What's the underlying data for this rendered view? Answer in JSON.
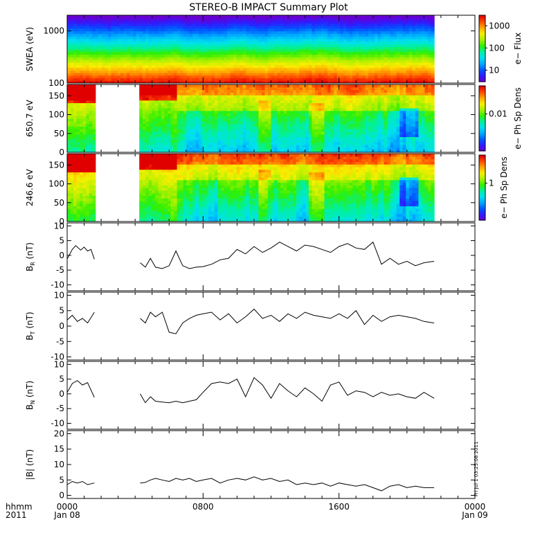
{
  "title": "STEREO-B IMPACT Summary Plot",
  "time_axis": {
    "corner_label_1": "hhmm",
    "corner_label_2": "2011",
    "ticks": [
      {
        "hours": 0,
        "label": "0000",
        "date": "Jan 08"
      },
      {
        "hours": 8,
        "label": "0800",
        "date": ""
      },
      {
        "hours": 16,
        "label": "1600",
        "date": ""
      },
      {
        "hours": 24,
        "label": "0000",
        "date": "Jan 09"
      }
    ]
  },
  "stamp": "Fri Jul 1 03:25:08 2011",
  "colors": {
    "colormap": [
      "#6a00d0",
      "#2f1cff",
      "#0058ff",
      "#00a8ff",
      "#00e0f0",
      "#00f0a0",
      "#30f000",
      "#a8f000",
      "#f8f000",
      "#ffa800",
      "#ff4800",
      "#e00000"
    ]
  },
  "chart_data": [
    {
      "type": "heatmap",
      "id": "swea",
      "ylabel": "SWEA (eV)",
      "y_scale": "log",
      "ylim": [
        100,
        2000
      ],
      "y_ticks": [
        {
          "v": 100,
          "label": "100"
        },
        {
          "v": 1000,
          "label": "1000"
        }
      ],
      "x_coverage_hours": [
        [
          0,
          21.6
        ]
      ],
      "colorbar": {
        "label": "e− Flux",
        "scale": "log",
        "range": [
          3,
          3000
        ],
        "ticks": [
          {
            "v": 10,
            "label": "10"
          },
          {
            "v": 100,
            "label": "100"
          },
          {
            "v": 1000,
            "label": "1000"
          }
        ]
      },
      "energy_profile": [
        {
          "energy": 100,
          "flux": 1800
        },
        {
          "energy": 200,
          "flux": 1000
        },
        {
          "energy": 300,
          "flux": 500
        },
        {
          "energy": 500,
          "flux": 150
        },
        {
          "energy": 800,
          "flux": 50
        },
        {
          "energy": 1200,
          "flux": 14
        },
        {
          "energy": 2000,
          "flux": 3
        }
      ]
    },
    {
      "type": "heatmap",
      "id": "pad650",
      "ylabel": "650.7 eV",
      "ylim": [
        0,
        180
      ],
      "y_ticks": [
        {
          "v": 0,
          "label": "0"
        },
        {
          "v": 50,
          "label": "50"
        },
        {
          "v": 100,
          "label": "100"
        },
        {
          "v": 150,
          "label": "150"
        }
      ],
      "x_coverage_hours": [
        [
          0,
          1.6
        ],
        [
          4.3,
          21.6
        ]
      ],
      "colorbar": {
        "label": "e− Ph Sp Dens",
        "scale": "log",
        "range": [
          0.0012,
          0.05
        ],
        "ticks": [
          {
            "v": 0.01,
            "label": "0.01"
          }
        ]
      }
    },
    {
      "type": "heatmap",
      "id": "pad246",
      "ylabel": "246.6 eV",
      "ylim": [
        0,
        180
      ],
      "y_ticks": [
        {
          "v": 0,
          "label": "0"
        },
        {
          "v": 50,
          "label": "50"
        },
        {
          "v": 100,
          "label": "100"
        },
        {
          "v": 150,
          "label": "150"
        }
      ],
      "x_coverage_hours": [
        [
          0,
          1.6
        ],
        [
          4.3,
          21.6
        ]
      ],
      "colorbar": {
        "label": "e− Ph Sp Dens",
        "scale": "log",
        "range": [
          0.12,
          5
        ],
        "ticks": [
          {
            "v": 1,
            "label": "1"
          }
        ]
      }
    },
    {
      "type": "line",
      "id": "br",
      "ylabel": "B",
      "ylabel_sub": "R",
      "ylabel_unit": "(nT)",
      "ylim": [
        -12,
        11
      ],
      "y_ticks": [
        -10,
        -5,
        0,
        5,
        10
      ],
      "segments": [
        {
          "x": [
            0.0,
            0.3,
            0.5,
            0.8,
            1.0,
            1.2,
            1.4,
            1.6
          ],
          "y": [
            -1.2,
            2.0,
            3.3,
            1.8,
            2.8,
            1.5,
            2.0,
            -1.3
          ]
        },
        {
          "x": [
            4.3,
            4.6,
            4.9,
            5.2,
            5.6,
            6.0,
            6.4,
            6.8,
            7.2,
            7.6,
            8.0,
            8.5,
            9.0,
            9.5,
            10.0,
            10.5,
            11.0,
            11.5,
            12.0,
            12.5,
            13.0,
            13.5,
            14.0,
            14.5,
            15.0,
            15.5,
            16.0,
            16.5,
            17.0,
            17.5,
            18.0,
            18.5,
            19.0,
            19.5,
            20.0,
            20.5,
            21.0,
            21.6
          ],
          "y": [
            -2.5,
            -4.0,
            -1.0,
            -4.0,
            -4.5,
            -3.5,
            1.5,
            -3.5,
            -4.5,
            -4.0,
            -3.8,
            -3.0,
            -1.5,
            -1.0,
            2.0,
            0.5,
            3.0,
            1.0,
            2.5,
            4.5,
            3.0,
            1.5,
            3.5,
            3.0,
            2.0,
            1.0,
            3.0,
            4.0,
            2.5,
            2.0,
            4.5,
            -3.0,
            -1.0,
            -3.0,
            -2.0,
            -3.5,
            -2.5,
            -2.0
          ]
        }
      ]
    },
    {
      "type": "line",
      "id": "bt",
      "ylabel": "B",
      "ylabel_sub": "T",
      "ylabel_unit": "(nT)",
      "ylim": [
        -11,
        11
      ],
      "y_ticks": [
        -10,
        -5,
        0,
        5,
        10
      ],
      "segments": [
        {
          "x": [
            0.0,
            0.3,
            0.6,
            0.9,
            1.2,
            1.6
          ],
          "y": [
            2.0,
            3.5,
            1.5,
            2.5,
            1.0,
            4.5
          ]
        },
        {
          "x": [
            4.3,
            4.6,
            4.9,
            5.2,
            5.6,
            6.0,
            6.4,
            6.8,
            7.2,
            7.6,
            8.0,
            8.5,
            9.0,
            9.5,
            10.0,
            10.5,
            11.0,
            11.5,
            12.0,
            12.5,
            13.0,
            13.5,
            14.0,
            14.5,
            15.0,
            15.5,
            16.0,
            16.5,
            17.0,
            17.5,
            18.0,
            18.5,
            19.0,
            19.5,
            20.0,
            20.5,
            21.0,
            21.6
          ],
          "y": [
            2.5,
            1.0,
            4.5,
            3.0,
            4.5,
            -2.0,
            -2.5,
            1.0,
            2.5,
            3.5,
            4.0,
            4.5,
            2.0,
            4.0,
            1.0,
            3.0,
            5.5,
            2.5,
            3.5,
            1.5,
            4.0,
            2.5,
            4.5,
            3.5,
            3.0,
            2.5,
            4.0,
            2.5,
            5.0,
            0.5,
            3.5,
            1.5,
            3.0,
            3.5,
            3.0,
            2.5,
            1.5,
            1.0
          ]
        }
      ]
    },
    {
      "type": "line",
      "id": "bn",
      "ylabel": "B",
      "ylabel_sub": "N",
      "ylabel_unit": "(nT)",
      "ylim": [
        -12,
        11
      ],
      "y_ticks": [
        -10,
        -5,
        0,
        5,
        10
      ],
      "segments": [
        {
          "x": [
            0.0,
            0.3,
            0.6,
            0.9,
            1.2,
            1.6
          ],
          "y": [
            0.5,
            3.5,
            4.5,
            3.0,
            3.8,
            -1.2
          ]
        },
        {
          "x": [
            4.3,
            4.6,
            4.9,
            5.2,
            5.6,
            6.0,
            6.4,
            6.8,
            7.2,
            7.6,
            8.0,
            8.5,
            9.0,
            9.5,
            10.0,
            10.5,
            11.0,
            11.5,
            12.0,
            12.5,
            13.0,
            13.5,
            14.0,
            14.5,
            15.0,
            15.5,
            16.0,
            16.5,
            17.0,
            17.5,
            18.0,
            18.5,
            19.0,
            19.5,
            20.0,
            20.5,
            21.0,
            21.6
          ],
          "y": [
            0.0,
            -3.0,
            -1.0,
            -2.5,
            -2.8,
            -3.0,
            -2.5,
            -3.0,
            -2.5,
            -2.0,
            0.5,
            3.5,
            4.0,
            3.5,
            5.0,
            -1.0,
            5.5,
            3.0,
            -1.5,
            3.5,
            1.0,
            -1.0,
            2.0,
            0.0,
            -2.5,
            3.0,
            4.0,
            -0.5,
            1.0,
            0.5,
            -1.0,
            0.5,
            -0.5,
            0.0,
            -1.0,
            -1.5,
            0.5,
            -1.5
          ]
        }
      ]
    },
    {
      "type": "line",
      "id": "bmag",
      "ylabel": "|B| (nT)",
      "ylim": [
        -1,
        21
      ],
      "y_ticks": [
        0,
        5,
        10,
        15,
        20
      ],
      "segments": [
        {
          "x": [
            0.0,
            0.3,
            0.6,
            0.9,
            1.2,
            1.6
          ],
          "y": [
            3.5,
            4.5,
            4.0,
            4.5,
            3.5,
            4.0
          ]
        },
        {
          "x": [
            4.3,
            4.6,
            4.9,
            5.2,
            5.6,
            6.0,
            6.4,
            6.8,
            7.2,
            7.6,
            8.0,
            8.5,
            9.0,
            9.5,
            10.0,
            10.5,
            11.0,
            11.5,
            12.0,
            12.5,
            13.0,
            13.5,
            14.0,
            14.5,
            15.0,
            15.5,
            16.0,
            16.5,
            17.0,
            17.5,
            18.0,
            18.5,
            19.0,
            19.5,
            20.0,
            20.5,
            21.0,
            21.6
          ],
          "y": [
            4.0,
            4.2,
            5.0,
            5.5,
            5.0,
            4.5,
            5.5,
            5.0,
            5.5,
            4.5,
            5.0,
            5.5,
            4.0,
            5.0,
            5.5,
            5.0,
            6.0,
            5.0,
            5.5,
            4.5,
            5.0,
            3.5,
            4.0,
            3.5,
            4.0,
            3.0,
            4.0,
            3.5,
            3.0,
            3.5,
            2.5,
            1.5,
            3.0,
            3.5,
            2.5,
            3.0,
            2.5,
            2.5
          ]
        }
      ]
    }
  ]
}
